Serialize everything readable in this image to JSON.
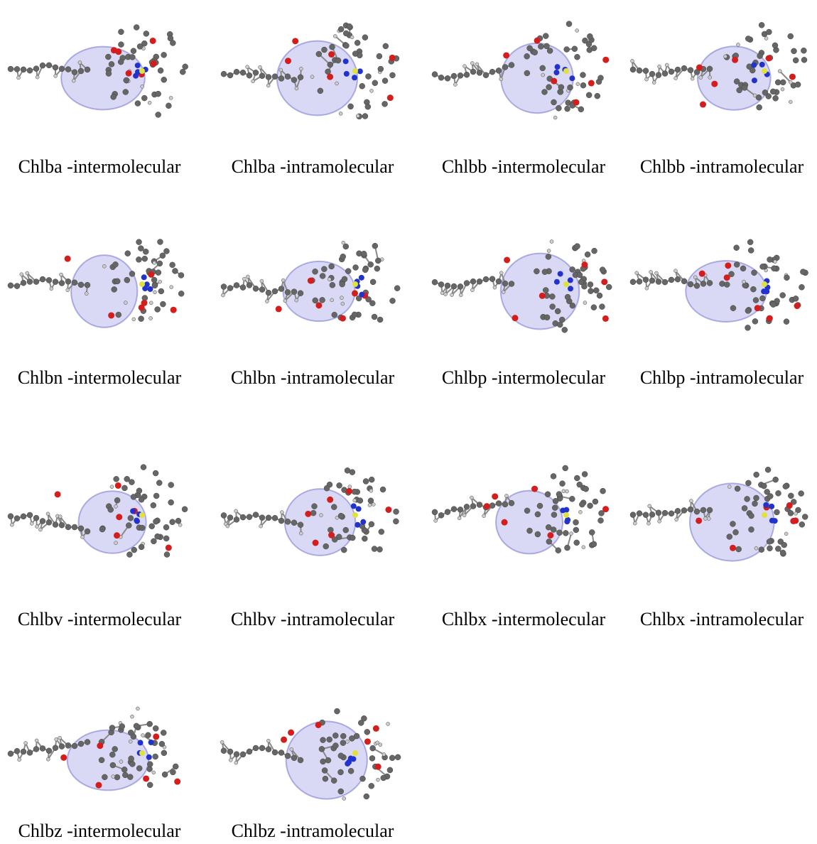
{
  "figure": {
    "panels": [
      {
        "caption": "Chlba -intermolecular"
      },
      {
        "caption": "Chlba -intramolecular"
      },
      {
        "caption": "Chlbb -intermolecular"
      },
      {
        "caption": "Chlbb -intramolecular"
      },
      {
        "caption": "Chlbn -intermolecular"
      },
      {
        "caption": "Chlbn -intramolecular"
      },
      {
        "caption": "Chlbp -intermolecular"
      },
      {
        "caption": "Chlbp -intramolecular"
      },
      {
        "caption": "Chlbv -intermolecular"
      },
      {
        "caption": "Chlbv -intramolecular"
      },
      {
        "caption": "Chlbx -intermolecular"
      },
      {
        "caption": "Chlbx -intramolecular"
      },
      {
        "caption": "Chlbz -intermolecular"
      },
      {
        "caption": "Chlbz -intramolecular"
      }
    ]
  }
}
